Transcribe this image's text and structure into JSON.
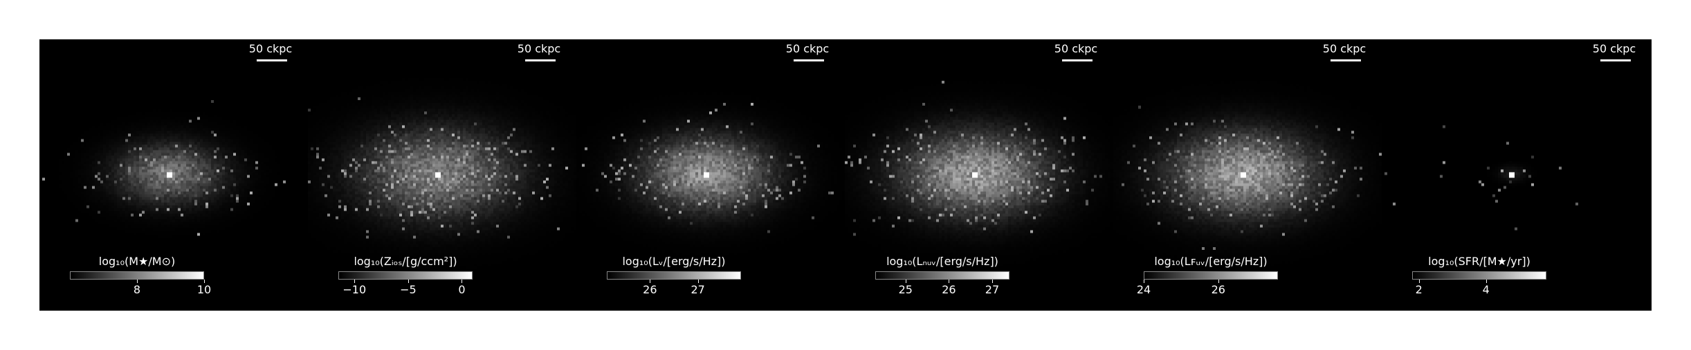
{
  "panels": [
    {
      "scale_label": "50 ckpc",
      "colorbar": {
        "title": "log₁₀(M★/M⊙)",
        "range": [
          6,
          10
        ],
        "ticks": [
          {
            "value": 8,
            "label": "8"
          },
          {
            "value": 10,
            "label": "10"
          }
        ]
      },
      "map": {
        "core_brightness": 1.0,
        "halo_brightness": 0.55,
        "halo_size": 0.12,
        "scatter": 0.25,
        "seed": 11
      }
    },
    {
      "scale_label": "50 ckpc",
      "colorbar": {
        "title": "log₁₀(Zᵢₒₛ/[g/ccm²])",
        "range": [
          -11.5,
          1.0
        ],
        "ticks": [
          {
            "value": -10,
            "label": "−10"
          },
          {
            "value": -5,
            "label": "−5"
          },
          {
            "value": 0,
            "label": "0"
          }
        ]
      },
      "map": {
        "core_brightness": 1.0,
        "halo_brightness": 0.6,
        "halo_size": 0.18,
        "scatter": 0.7,
        "seed": 23
      }
    },
    {
      "scale_label": "50 ckpc",
      "colorbar": {
        "title": "log₁₀(Lᵥ/[erg/s/Hz])",
        "range": [
          25.1,
          27.9
        ],
        "ticks": [
          {
            "value": 26,
            "label": "26"
          },
          {
            "value": 27,
            "label": "27"
          }
        ]
      },
      "map": {
        "core_brightness": 1.0,
        "halo_brightness": 0.7,
        "halo_size": 0.15,
        "scatter": 0.55,
        "seed": 37
      }
    },
    {
      "scale_label": "50 ckpc",
      "colorbar": {
        "title": "log₁₀(Lₙᵤᵥ/[erg/s/Hz])",
        "range": [
          24.3,
          27.4
        ],
        "ticks": [
          {
            "value": 25,
            "label": "25"
          },
          {
            "value": 26,
            "label": "26"
          },
          {
            "value": 27,
            "label": "27"
          }
        ]
      },
      "map": {
        "core_brightness": 1.0,
        "halo_brightness": 0.75,
        "halo_size": 0.17,
        "scatter": 0.7,
        "seed": 51
      }
    },
    {
      "scale_label": "50 ckpc",
      "colorbar": {
        "title": "log₁₀(Lꜰᵤᵥ/[erg/s/Hz])",
        "range": [
          24.0,
          27.6
        ],
        "ticks": [
          {
            "value": 24,
            "label": "24"
          },
          {
            "value": 26,
            "label": "26"
          }
        ]
      },
      "map": {
        "core_brightness": 1.0,
        "halo_brightness": 0.75,
        "halo_size": 0.17,
        "scatter": 0.7,
        "seed": 67
      }
    },
    {
      "scale_label": "50 ckpc",
      "colorbar": {
        "title": "log₁₀(SFR/[M★/yr])",
        "range": [
          1.8,
          5.8
        ],
        "ticks": [
          {
            "value": 2,
            "label": "2"
          },
          {
            "value": 4,
            "label": "4"
          }
        ]
      },
      "map": {
        "core_brightness": 1.0,
        "halo_brightness": 0.15,
        "halo_size": 0.03,
        "scatter": 0.05,
        "seed": 83
      }
    }
  ]
}
